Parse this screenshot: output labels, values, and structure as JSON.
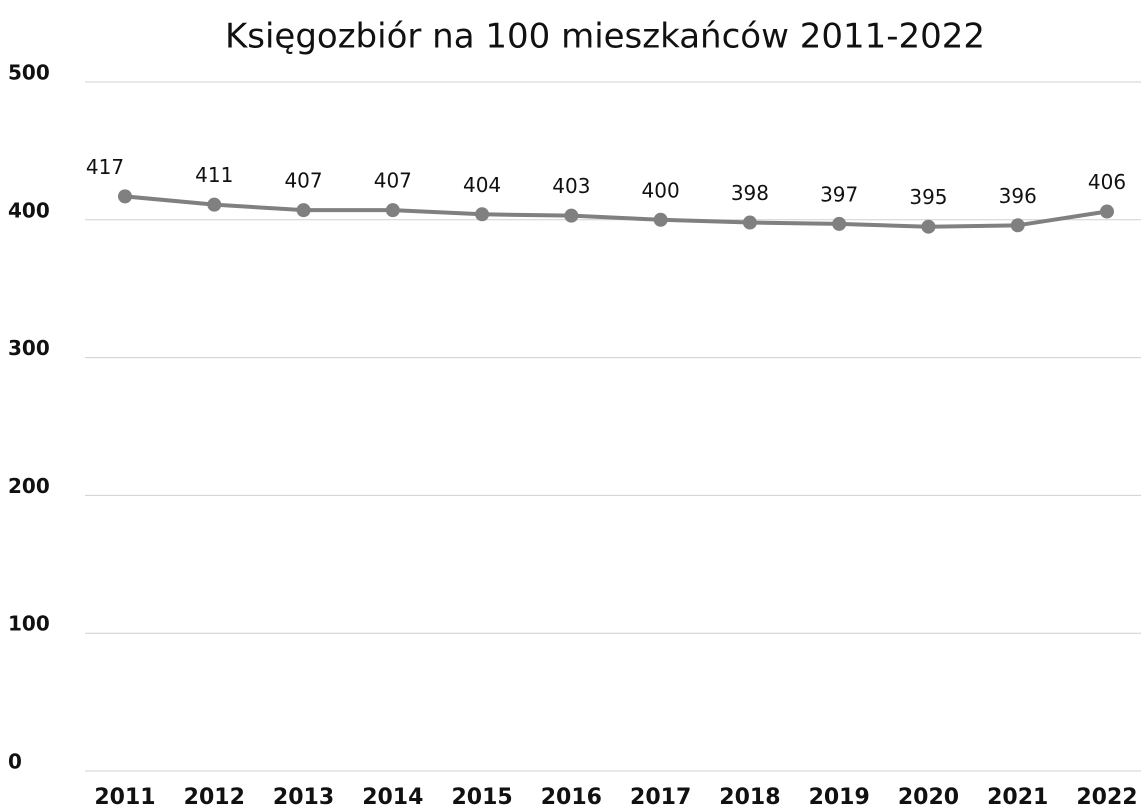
{
  "chart_data": {
    "type": "line",
    "title": "Księgozbiór na 100 mieszkańców 2011-2022",
    "categories": [
      "2011",
      "2012",
      "2013",
      "2014",
      "2015",
      "2016",
      "2017",
      "2018",
      "2019",
      "2020",
      "2021",
      "2022"
    ],
    "series": [
      {
        "name": "Księgozbiór na 100 mieszkańców",
        "color": "#808080",
        "values": [
          417,
          411,
          407,
          407,
          404,
          403,
          400,
          398,
          397,
          395,
          396,
          406
        ]
      }
    ],
    "ylim": [
      0,
      500
    ],
    "yticks": [
      0,
      100,
      200,
      300,
      400,
      500
    ],
    "grid": true
  }
}
